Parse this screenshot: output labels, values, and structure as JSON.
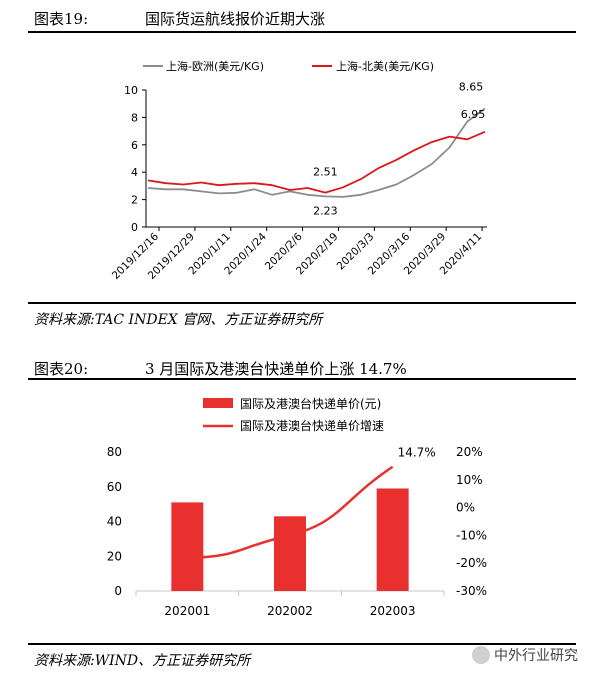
{
  "figure19": {
    "number_label": "图表19:",
    "title": "国际货运航线报价近期大涨",
    "source": "资料来源:TAC INDEX 官网、方正证券研究所"
  },
  "figure20": {
    "number_label": "图表20:",
    "title": "3 月国际及港澳台快递单价上涨 14.7%",
    "source": "资料来源:WIND、方正证券研究所"
  },
  "watermark": "中外行业研究",
  "chart_data": [
    {
      "type": "line",
      "title": "",
      "xlabel": "",
      "ylabel": "",
      "ylim": [
        0,
        10
      ],
      "yticks": [
        0,
        2,
        4,
        6,
        8,
        10
      ],
      "x_ticks": [
        "2019/12/16",
        "2019/12/29",
        "2020/1/11",
        "2020/1/24",
        "2020/2/6",
        "2020/2/19",
        "2020/3/3",
        "2020/3/16",
        "2020/3/29",
        "2020/4/11"
      ],
      "x_count": 20,
      "legend_position": "top",
      "grid": false,
      "series": [
        {
          "name": "上海-欧洲(美元/KG)",
          "color": "#8c8c8c",
          "values": [
            2.85,
            2.75,
            2.75,
            2.6,
            2.45,
            2.5,
            2.75,
            2.35,
            2.6,
            2.35,
            2.23,
            2.2,
            2.35,
            2.7,
            3.1,
            3.8,
            4.6,
            5.8,
            7.7,
            8.65
          ]
        },
        {
          "name": "上海-北美(美元/KG)",
          "color": "#d7191c",
          "values": [
            3.4,
            3.2,
            3.1,
            3.25,
            3.05,
            3.15,
            3.2,
            3.05,
            2.7,
            2.85,
            2.51,
            2.9,
            3.5,
            4.3,
            4.9,
            5.6,
            6.2,
            6.6,
            6.4,
            6.95
          ]
        }
      ],
      "annotations": [
        {
          "label": "8.65",
          "series": 0,
          "index": 19
        },
        {
          "label": "6.95",
          "series": 1,
          "index": 19
        },
        {
          "label": "2.51",
          "series": 1,
          "index": 10
        },
        {
          "label": "2.23",
          "series": 0,
          "index": 10
        }
      ]
    },
    {
      "type": "bar",
      "title": "",
      "xlabel": "",
      "ylabel": "",
      "categories": [
        "202001",
        "202002",
        "202003"
      ],
      "ylim": [
        0,
        80
      ],
      "yticks": [
        0,
        20,
        40,
        60,
        80
      ],
      "y2lim": [
        -30,
        20
      ],
      "y2ticks": [
        "20%",
        "10%",
        "0%",
        "-10%",
        "-20%",
        "-30%"
      ],
      "y2tick_values": [
        20,
        10,
        0,
        -10,
        -20,
        -30
      ],
      "legend_position": "top",
      "grid": false,
      "series": [
        {
          "name": "国际及港澳台快递单价(元)",
          "type": "bar",
          "axis": "left",
          "color": "#e8312f",
          "values": [
            51,
            43,
            59
          ]
        },
        {
          "name": "国际及港澳台快递单价增速",
          "type": "line",
          "axis": "right",
          "color": "#e8312f",
          "values": [
            -18,
            -10,
            14.7
          ]
        }
      ],
      "annotations": [
        {
          "label": "14.7%",
          "series": 1,
          "index": 2
        }
      ]
    }
  ]
}
